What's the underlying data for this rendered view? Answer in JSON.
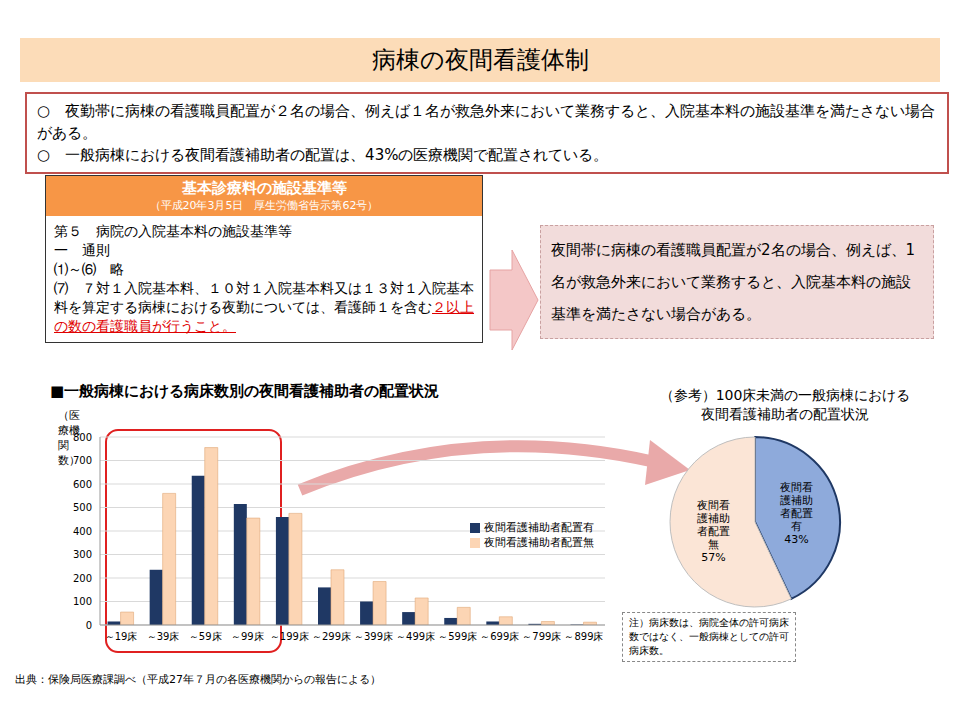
{
  "title": "病棟の夜間看護体制",
  "summary": [
    "○　夜勤帯に病棟の看護職員配置が２名の場合、例えば１名が救急外来において業務すると、入院基本料の施設基準を満たさない場合がある。",
    "○　一般病棟における夜間看護補助者の配置は、43%の医療機関で配置されている。"
  ],
  "standards_box": {
    "header": "基本診療料の施設基準等",
    "subheader": "（平成20年3月5日　厚生労働省告示第62号）",
    "lines": [
      "第５　病院の入院基本料の施設基準等",
      "一　通則",
      "⑴～⑹　略"
    ],
    "clause": "⑺　７対１入院基本料、１０対１入院基本料又は１３対１入院基本料を算定する病棟における夜勤については、看護師１を含む",
    "clause_emphasis": "２以上の数の看護職員が行うこと。"
  },
  "callout": "夜間帯に病棟の看護職員配置が2名の場合、例えば、1名が救急外来において業務すると、入院基本料の施設基準を満たさない場合がある。",
  "note": "注）病床数は、病院全体の許可病床数ではなく、一般病棟としての許可病床数。",
  "source": "出典：保険局医療課調べ（平成27年７月の各医療機関からの報告による）",
  "chart_data": [
    {
      "type": "bar",
      "title": "■一般病棟における病床数別の夜間看護補助者の配置状況",
      "y_label": "（医療機関数）",
      "categories": [
        "～19床",
        "～39床",
        "～59床",
        "～99床",
        "～199床",
        "～299床",
        "～399床",
        "～499床",
        "～599床",
        "～699床",
        "～799床",
        "～899床"
      ],
      "series": [
        {
          "name": "夜間看護補助者配置有",
          "color": "#1f3864",
          "values": [
            15,
            235,
            635,
            515,
            460,
            160,
            100,
            55,
            30,
            15,
            5,
            2
          ]
        },
        {
          "name": "夜間看護補助者配置無",
          "color": "#fcd5b4",
          "values": [
            55,
            560,
            755,
            455,
            475,
            235,
            185,
            115,
            75,
            35,
            15,
            12
          ]
        }
      ],
      "ylim": [
        0,
        800
      ],
      "yticks": [
        0,
        100,
        200,
        300,
        400,
        500,
        600,
        700,
        800
      ],
      "grid": true,
      "legend": "right"
    },
    {
      "type": "pie",
      "title": "（参考）100床未満の一般病棟における\n夜間看護補助者の配置状況",
      "categories": [
        "夜間看護補助者配置有",
        "夜間看護補助者配置無"
      ],
      "values": [
        43,
        57
      ],
      "value_labels": [
        "43%",
        "57%"
      ],
      "colors": [
        "#8eaadb",
        "#fbe5d6"
      ],
      "data_labels": true
    }
  ]
}
